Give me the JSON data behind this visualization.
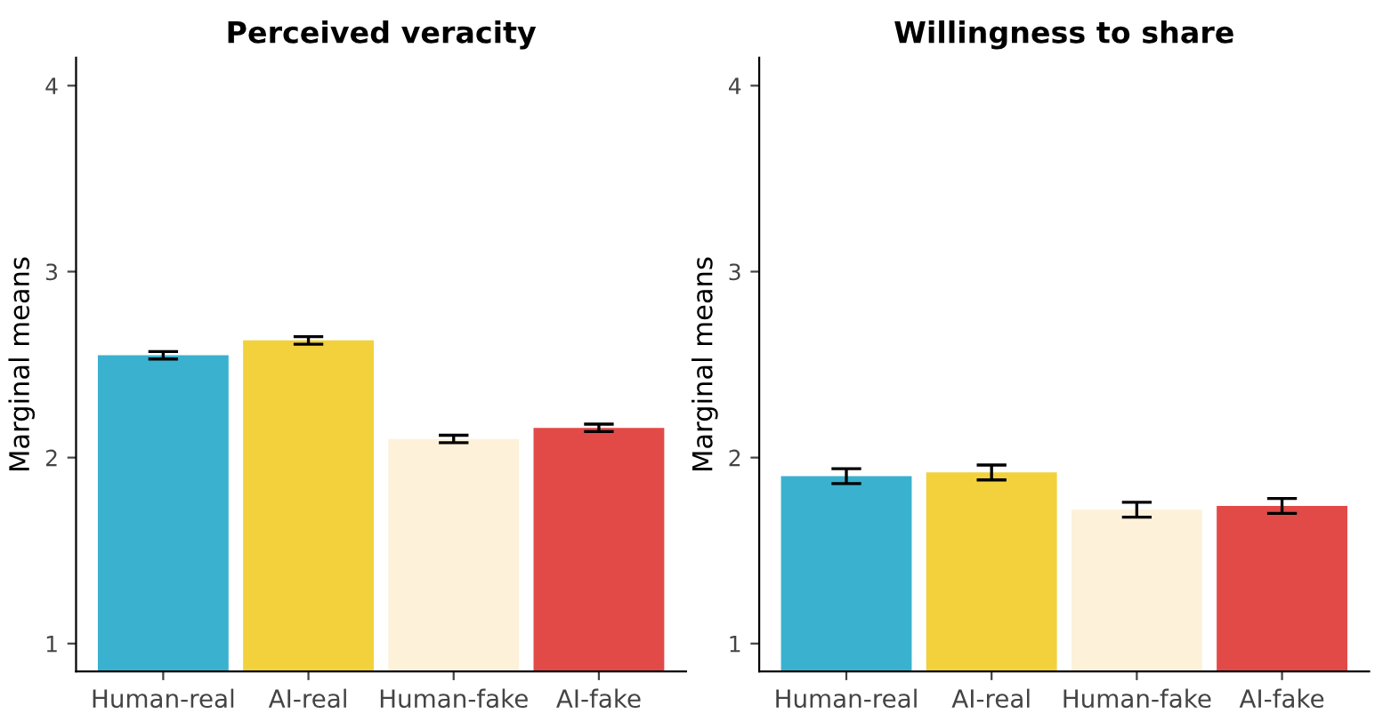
{
  "chart_data": [
    {
      "type": "bar",
      "title": "Perceived veracity",
      "ylabel": "Marginal means",
      "categories": [
        "Human-real",
        "AI-real",
        "Human-fake",
        "AI-fake"
      ],
      "values": [
        2.55,
        2.63,
        2.1,
        2.16
      ],
      "errors": [
        0.02,
        0.02,
        0.02,
        0.02
      ],
      "colors": [
        "#3ab1cf",
        "#f2d13c",
        "#fdf1da",
        "#e24a48"
      ],
      "ylim": [
        0.85,
        4.15
      ],
      "yticks": [
        1,
        2,
        3,
        4
      ],
      "grid": false
    },
    {
      "type": "bar",
      "title": "Willingness to share",
      "ylabel": "Marginal means",
      "categories": [
        "Human-real",
        "AI-real",
        "Human-fake",
        "AI-fake"
      ],
      "values": [
        1.9,
        1.92,
        1.72,
        1.74
      ],
      "errors": [
        0.04,
        0.04,
        0.04,
        0.04
      ],
      "colors": [
        "#3ab1cf",
        "#f2d13c",
        "#fdf1da",
        "#e24a48"
      ],
      "ylim": [
        0.85,
        4.15
      ],
      "yticks": [
        1,
        2,
        3,
        4
      ],
      "grid": false
    }
  ]
}
